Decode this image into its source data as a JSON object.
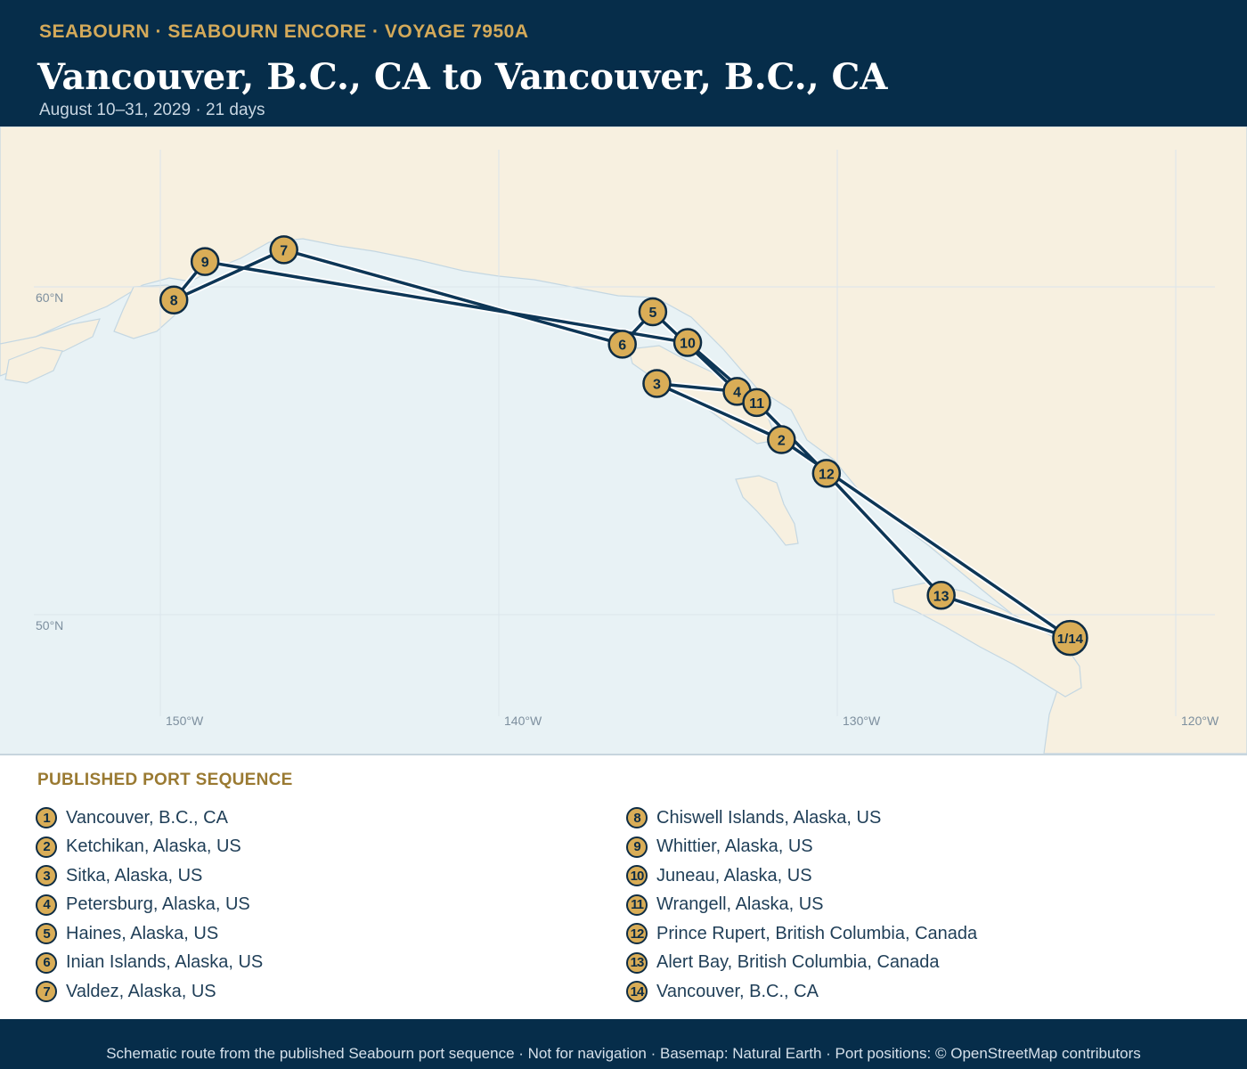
{
  "header": {
    "eyebrow": "SEABOURN · SEABOURN ENCORE · VOYAGE 7950A",
    "title": "Vancouver, B.C., CA to Vancouver, B.C., CA",
    "subtitle": "August 10–31, 2029 · 21 days"
  },
  "map": {
    "land_color": "#f7f0e0",
    "water_color": "#e8f2f5",
    "route_color": "#0d3656",
    "marker_color": "#d9ad57",
    "lat_labels": [
      "60°N",
      "50°N"
    ],
    "lon_labels": [
      "150°W",
      "140°W",
      "130°W",
      "120°W"
    ],
    "route": [
      {
        "label": "1/14",
        "lon": -123.12,
        "lat": 49.29
      },
      {
        "label": "2",
        "lon": -131.65,
        "lat": 55.34
      },
      {
        "label": "3",
        "lon": -135.33,
        "lat": 57.05
      },
      {
        "label": "4",
        "lon": -132.96,
        "lat": 56.81
      },
      {
        "label": "5",
        "lon": -135.45,
        "lat": 59.24
      },
      {
        "label": "6",
        "lon": -136.35,
        "lat": 58.25
      },
      {
        "label": "7",
        "lon": -146.35,
        "lat": 61.13
      },
      {
        "label": "8",
        "lon": -149.6,
        "lat": 59.6
      },
      {
        "label": "9",
        "lon": -148.68,
        "lat": 60.77
      },
      {
        "label": "10",
        "lon": -134.42,
        "lat": 58.3
      },
      {
        "label": "11",
        "lon": -132.38,
        "lat": 56.47
      },
      {
        "label": "12",
        "lon": -130.32,
        "lat": 54.31
      },
      {
        "label": "13",
        "lon": -126.93,
        "lat": 50.59
      },
      {
        "label": "1/14",
        "lon": -123.12,
        "lat": 49.29
      }
    ]
  },
  "legend": {
    "title": "PUBLISHED PORT SEQUENCE",
    "ports": [
      {
        "num": "1",
        "name": "Vancouver, B.C., CA"
      },
      {
        "num": "2",
        "name": "Ketchikan, Alaska, US"
      },
      {
        "num": "3",
        "name": "Sitka, Alaska, US"
      },
      {
        "num": "4",
        "name": "Petersburg, Alaska, US"
      },
      {
        "num": "5",
        "name": "Haines, Alaska, US"
      },
      {
        "num": "6",
        "name": "Inian Islands, Alaska, US"
      },
      {
        "num": "7",
        "name": "Valdez, Alaska, US"
      },
      {
        "num": "8",
        "name": "Chiswell Islands, Alaska, US"
      },
      {
        "num": "9",
        "name": "Whittier, Alaska, US"
      },
      {
        "num": "10",
        "name": "Juneau, Alaska, US"
      },
      {
        "num": "11",
        "name": "Wrangell, Alaska, US"
      },
      {
        "num": "12",
        "name": "Prince Rupert, British Columbia, Canada"
      },
      {
        "num": "13",
        "name": "Alert Bay, British Columbia, Canada"
      },
      {
        "num": "14",
        "name": "Vancouver, B.C., CA"
      }
    ]
  },
  "footer": {
    "text": "Schematic route from the published Seabourn port sequence · Not for navigation · Basemap: Natural Earth · Port positions: © OpenStreetMap contributors"
  }
}
